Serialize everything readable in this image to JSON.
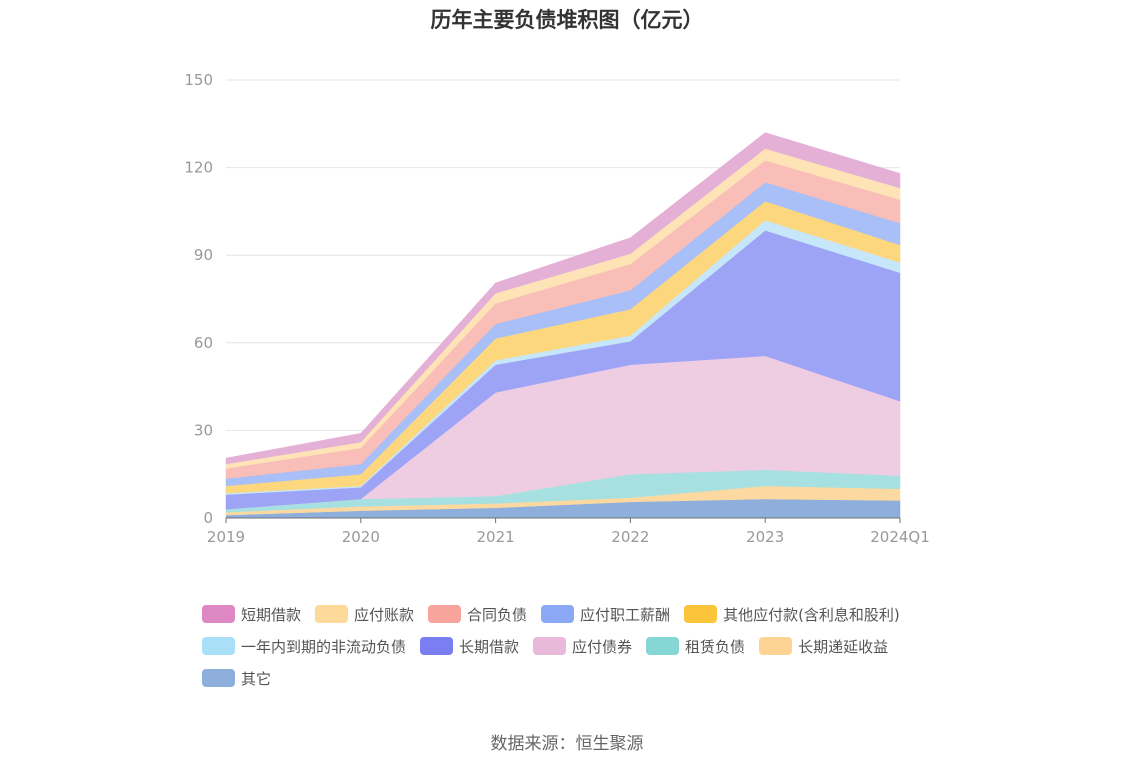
{
  "chart_data": {
    "type": "area",
    "stacked": true,
    "title": "历年主要负债堆积图（亿元）",
    "x": [
      "2019",
      "2020",
      "2021",
      "2022",
      "2023",
      "2024Q1"
    ],
    "ylim": [
      0,
      150
    ],
    "yticks": [
      0,
      30,
      60,
      90,
      120,
      150
    ],
    "grid": true,
    "legend_position": "bottom",
    "series": [
      {
        "name": "其它",
        "color": "#8eaedb",
        "values": [
          1.0,
          2.5,
          3.5,
          5.5,
          6.5,
          6.0
        ]
      },
      {
        "name": "长期递延收益",
        "color": "#fcd9a0",
        "values": [
          1.0,
          1.5,
          1.5,
          1.5,
          4.5,
          4.0
        ]
      },
      {
        "name": "租赁负债",
        "color": "#a6e0e0",
        "values": [
          1.0,
          2.5,
          2.5,
          8.0,
          5.5,
          4.5
        ]
      },
      {
        "name": "应付债券",
        "color": "#eecde3",
        "values": [
          0.0,
          0.0,
          35.5,
          37.5,
          39.0,
          25.5
        ]
      },
      {
        "name": "长期借款",
        "color": "#9da3f5",
        "values": [
          5.0,
          4.0,
          9.5,
          8.0,
          43.0,
          44.0
        ]
      },
      {
        "name": "一年内到期的非流动负债",
        "color": "#c6e6fa",
        "values": [
          0.5,
          0.5,
          1.5,
          2.0,
          3.5,
          3.5
        ]
      },
      {
        "name": "其他应付款(含利息和股利)",
        "color": "#fdd77e",
        "values": [
          2.5,
          4.0,
          7.5,
          9.0,
          6.5,
          6.0
        ]
      },
      {
        "name": "应付职工薪酬",
        "color": "#a9bff7",
        "values": [
          2.5,
          3.5,
          5.0,
          6.5,
          6.5,
          7.5
        ]
      },
      {
        "name": "合同负债",
        "color": "#f9beb8",
        "values": [
          3.5,
          5.5,
          7.0,
          9.0,
          7.5,
          8.0
        ]
      },
      {
        "name": "应付账款",
        "color": "#fde3b6",
        "values": [
          1.5,
          2.0,
          3.5,
          3.5,
          4.0,
          4.0
        ]
      },
      {
        "name": "短期借款",
        "color": "#e4b0d6",
        "values": [
          2.0,
          3.0,
          3.5,
          5.5,
          5.5,
          5.0
        ]
      }
    ],
    "legend_order": [
      "短期借款",
      "应付账款",
      "合同负债",
      "应付职工薪酬",
      "其他应付款(含利息和股利)",
      "一年内到期的非流动负债",
      "长期借款",
      "应付债券",
      "租赁负债",
      "长期递延收益",
      "其它"
    ],
    "legend_colors": {
      "短期借款": "#dd88c2",
      "应付账款": "#fdd99a",
      "合同负债": "#f8a39b",
      "应付职工薪酬": "#8aa8f5",
      "其他应付款(含利息和股利)": "#fcc43a",
      "一年内到期的非流动负债": "#aadff8",
      "长期借款": "#7b7ef0",
      "应付债券": "#e8b9d8",
      "租赁负债": "#86d6d6",
      "长期递延收益": "#fdd493",
      "其它": "#8eaedb"
    }
  },
  "source": "数据来源：恒生聚源"
}
